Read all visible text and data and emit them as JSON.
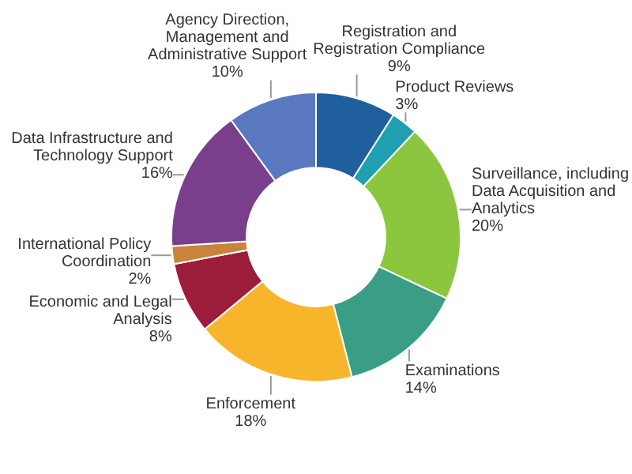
{
  "chart_data": {
    "type": "donut",
    "categories": [
      "Registration and Registration Compliance",
      "Product Reviews",
      "Surveillance, including Data Acquisition and Analytics",
      "Examinations",
      "Enforcement",
      "Economic and Legal Analysis",
      "International Policy Coordination",
      "Data Infrastructure and Technology Support",
      "Agency Direction, Management and Administrative Support"
    ],
    "values": [
      9,
      3,
      20,
      14,
      18,
      8,
      2,
      16,
      10
    ],
    "value_labels": [
      "9%",
      "3%",
      "20%",
      "14%",
      "18%",
      "8%",
      "2%",
      "16%",
      "10%"
    ],
    "colors": [
      "#1f5f9e",
      "#1f9fb0",
      "#8cc63e",
      "#3a9e86",
      "#f7b52c",
      "#9c1c3c",
      "#c8843c",
      "#7a3f8c",
      "#5a78c0"
    ]
  }
}
